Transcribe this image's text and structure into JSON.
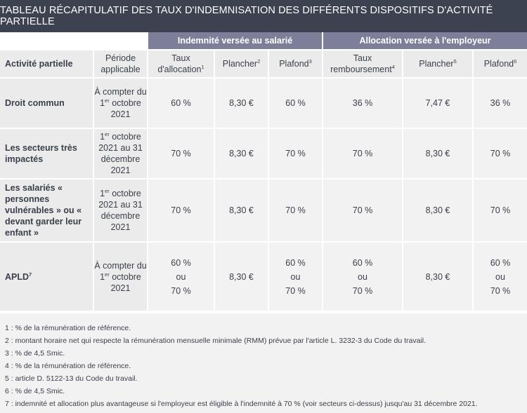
{
  "title": "TABLEAU RÉCAPITULATIF DES TAUX D'INDEMNISATION DES DIFFÉRENTS DISPOSITIFS D'ACTIVITÉ PARTIELLE",
  "groups": {
    "salarie": "Indemnité versée au salarié",
    "employeur": "Allocation versée à l'employeur"
  },
  "headers": {
    "activite": "Activité partielle",
    "periode": "Période applicable",
    "taux_allocation": "Taux d'allocation",
    "taux_allocation_sup": "1",
    "plancher_salarie": "Plancher",
    "plancher_salarie_sup": "2",
    "plafond_salarie": "Plafond",
    "plafond_salarie_sup": "3",
    "taux_remboursement": "Taux remboursement",
    "taux_remboursement_sup": "4",
    "plancher_employeur": "Plancher",
    "plancher_employeur_sup": "5",
    "plafond_employeur": "Plafond",
    "plafond_employeur_sup": "6"
  },
  "rows": [
    {
      "label": "Droit commun",
      "label_sup": "",
      "period_pre": "À compter du 1",
      "period_sup": "er",
      "period_post": " octobre 2021",
      "taux_allocation": "60 %",
      "plancher_salarie": "8,30 €",
      "plafond_salarie": "60 %",
      "taux_remboursement": "36 %",
      "plancher_employeur": "7,47 €",
      "plafond_employeur": "36 %"
    },
    {
      "label": "Les secteurs très impactés",
      "label_sup": "",
      "period_pre": "1",
      "period_sup": "er",
      "period_post": " octobre 2021 au 31 décembre 2021",
      "taux_allocation": "70 %",
      "plancher_salarie": "8,30 €",
      "plafond_salarie": "70 %",
      "taux_remboursement": "70 %",
      "plancher_employeur": "8,30 €",
      "plafond_employeur": "70 %"
    },
    {
      "label": "Les salariés « personnes vulnérables » ou « devant garder leur enfant »",
      "label_sup": "",
      "period_pre": "1",
      "period_sup": "er",
      "period_post": " octobre 2021 au 31 décembre 2021",
      "taux_allocation": "70 %",
      "plancher_salarie": "8,30 €",
      "plafond_salarie": "70 %",
      "taux_remboursement": "70 %",
      "plancher_employeur": "8,30 €",
      "plafond_employeur": "70 %"
    },
    {
      "label": "APLD",
      "label_sup": "7",
      "period_pre": "À compter du 1",
      "period_sup": "er",
      "period_post": " octobre 2021",
      "taux_allocation_lines": [
        "60 %",
        "ou",
        "70 %"
      ],
      "plancher_salarie": "8,30 €",
      "plafond_salarie_lines": [
        "60 %",
        "ou",
        "70 %"
      ],
      "taux_remboursement_lines": [
        "60 %",
        "ou",
        "70 %"
      ],
      "plancher_employeur": "8,30 €",
      "plafond_employeur_lines": [
        "60 %",
        "ou",
        "70 %"
      ]
    }
  ],
  "notes": [
    "1 : % de la rémunération de référence.",
    "2 : montant horaire net qui respecte la rémunération mensuelle minimale (RMM) prévue par l'article L. 3232-3 du Code du travail.",
    "3 : % de 4,5 Smic.",
    "4 : % de la rémunération de référence.",
    "5 : article D. 5122-13 du Code du travail.",
    "6 : % de 4,5 Smic.",
    "7 : indemnité et allocation plus avantageuse si l'employeur est éligible à l'indemnité à 70 % (voir secteurs ci-dessus) jusqu'au 31 décembre 2021."
  ]
}
